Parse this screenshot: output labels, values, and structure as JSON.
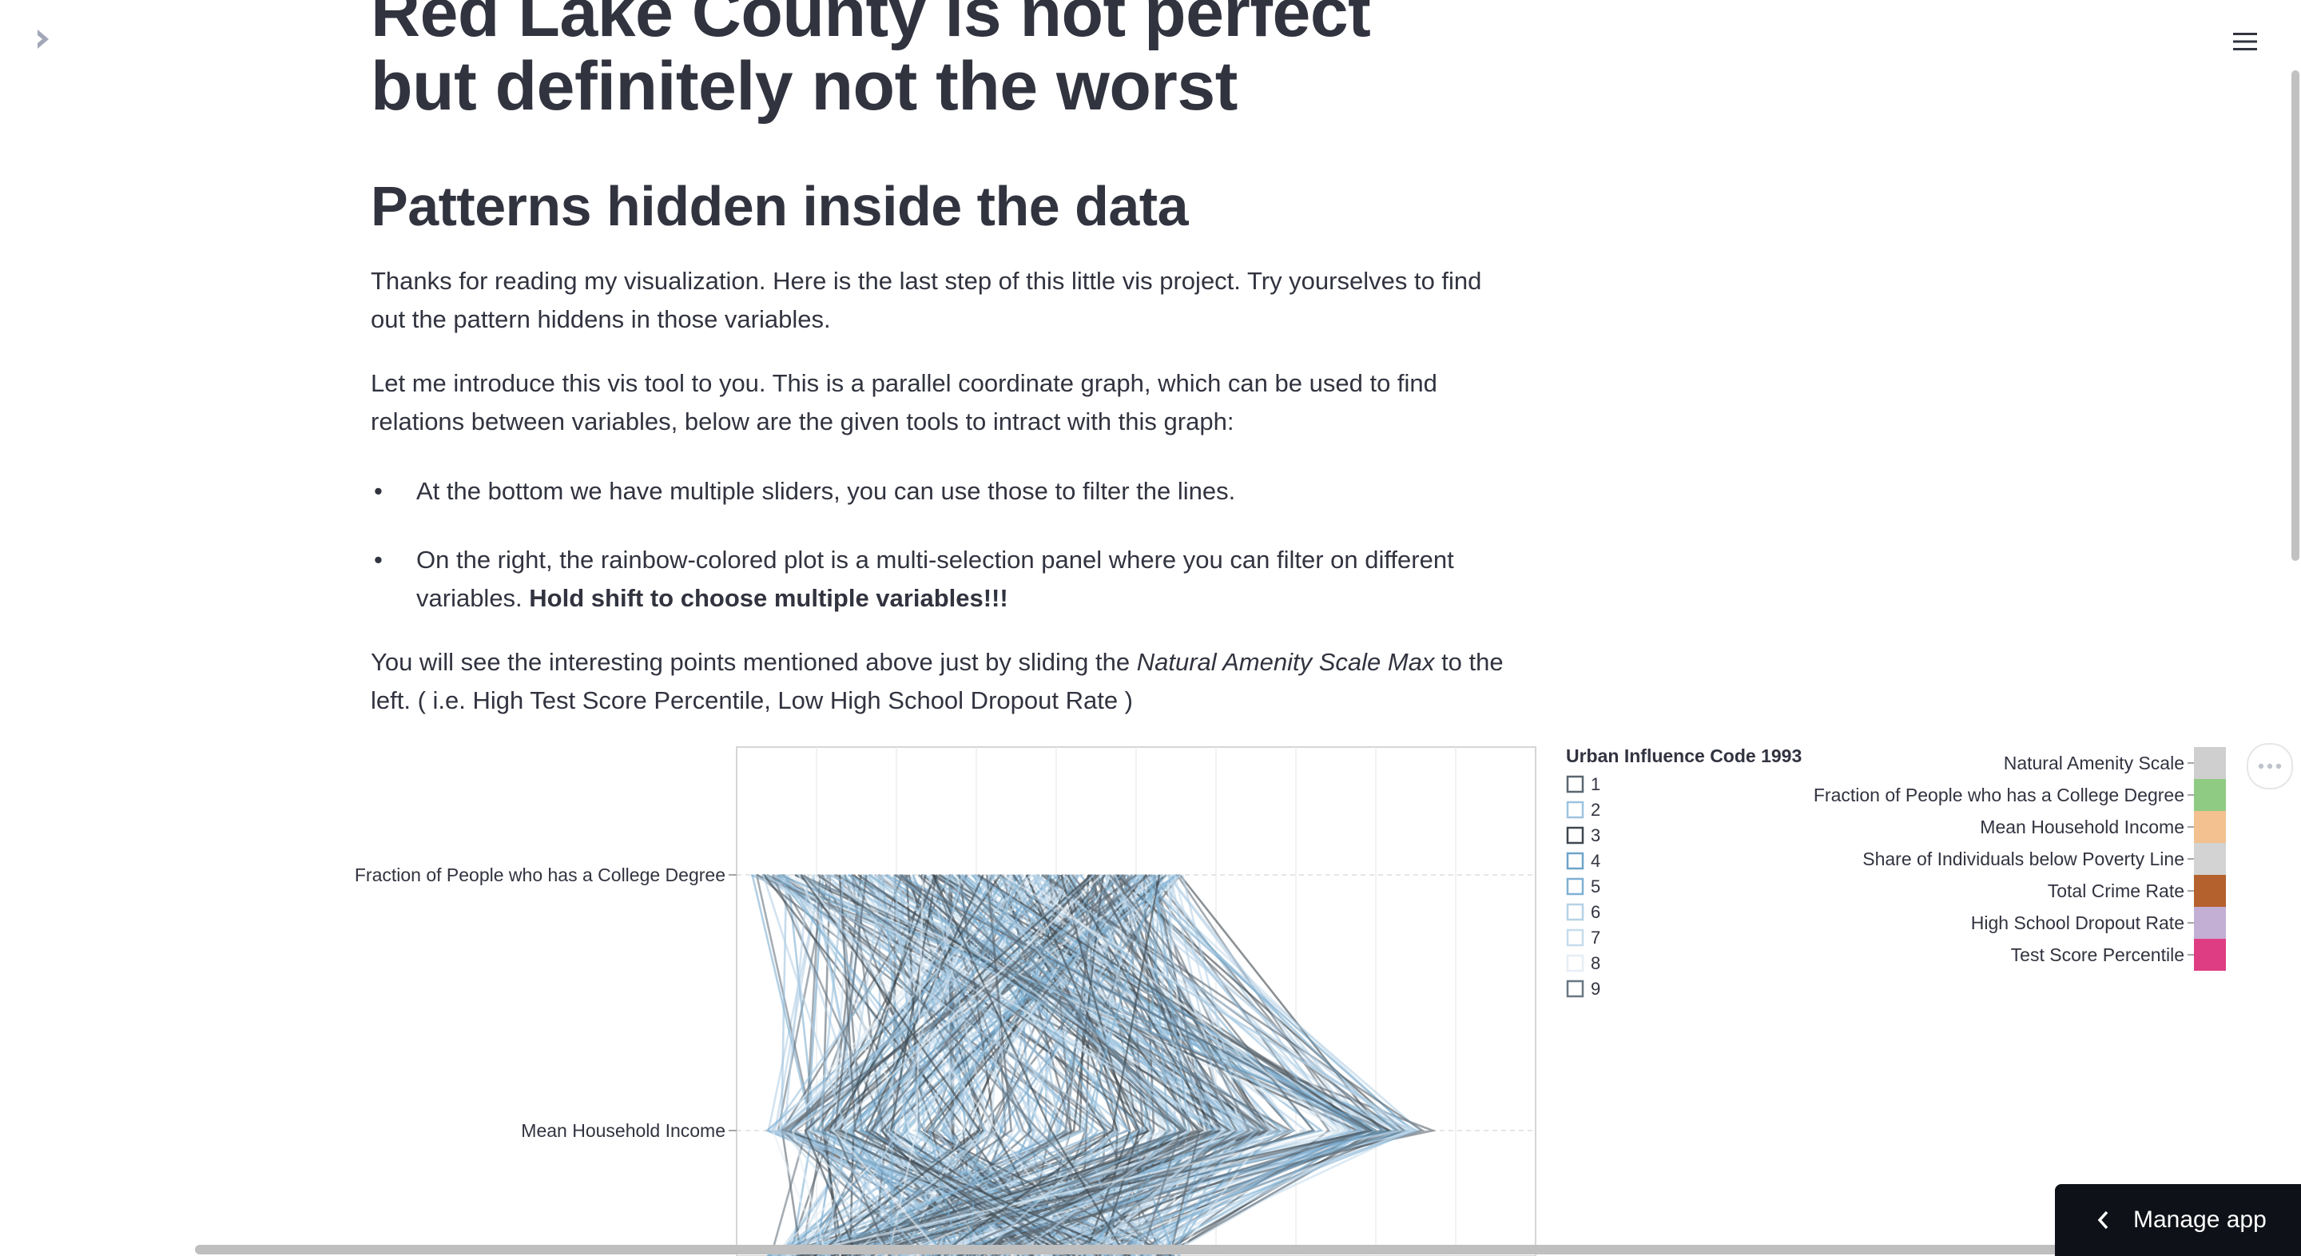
{
  "page": {
    "title": "Red Lake County is not perfect but definitely not the worst",
    "subtitle": "Patterns hidden inside the data",
    "intro": "Thanks for reading my visualization. Here is the last step of this little vis project. Try yourselves to find out the pattern hiddens in those variables.",
    "intro2": "Let me introduce this vis tool to you. This is a parallel coordinate graph, which can be used to find relations between variables, below are the given tools to intract with this graph:",
    "bullets": [
      {
        "text": "At the bottom we have multiple sliders, you can use those to filter the lines."
      },
      {
        "text": "On the right, the rainbow-colored plot is a multi-selection panel where you can filter on different variables. ",
        "bold": "Hold shift to choose multiple variables!!!"
      }
    ],
    "closing": {
      "pre": "You will see the interesting points mentioned above just by sliding the ",
      "italic": "Natural Amenity Scale Max",
      "post": " to the left. ( i.e. High Test Score Percentile, Low High School Dropout Rate )"
    }
  },
  "controls": {
    "manage_app_label": "Manage app",
    "sidebar_icon": "chevron-right-icon",
    "menu_icon": "hamburger-icon",
    "more_icon": "more-horizontal-icon"
  },
  "chart_data": {
    "type": "parallel-coordinates",
    "axes": [
      "Fraction of People who has a College Degree",
      "Mean Household Income"
    ],
    "color_legend": {
      "title": "Urban Influence Code 1993",
      "items": [
        "1",
        "2",
        "3",
        "4",
        "5",
        "6",
        "7",
        "8",
        "9"
      ],
      "colors": [
        "#5a6670",
        "#9dc3e0",
        "#3e474f",
        "#6ea4c9",
        "#7fb0d2",
        "#b5d1e6",
        "#c6dcec",
        "#e6eef5",
        "#697782"
      ]
    },
    "variable_selector": {
      "items": [
        {
          "label": "Natural Amenity Scale",
          "color": "#cfcfcf"
        },
        {
          "label": "Fraction of People who has a College Degree",
          "color": "#8fcb83"
        },
        {
          "label": "Mean Household Income",
          "color": "#f3c08f"
        },
        {
          "label": "Share of Individuals below Poverty Line",
          "color": "#d3d3d3"
        },
        {
          "label": "Total Crime Rate",
          "color": "#b5612d"
        },
        {
          "label": "High School Dropout Rate",
          "color": "#c3aed4"
        },
        {
          "label": "Test Score Percentile",
          "color": "#df3d83"
        }
      ]
    }
  }
}
